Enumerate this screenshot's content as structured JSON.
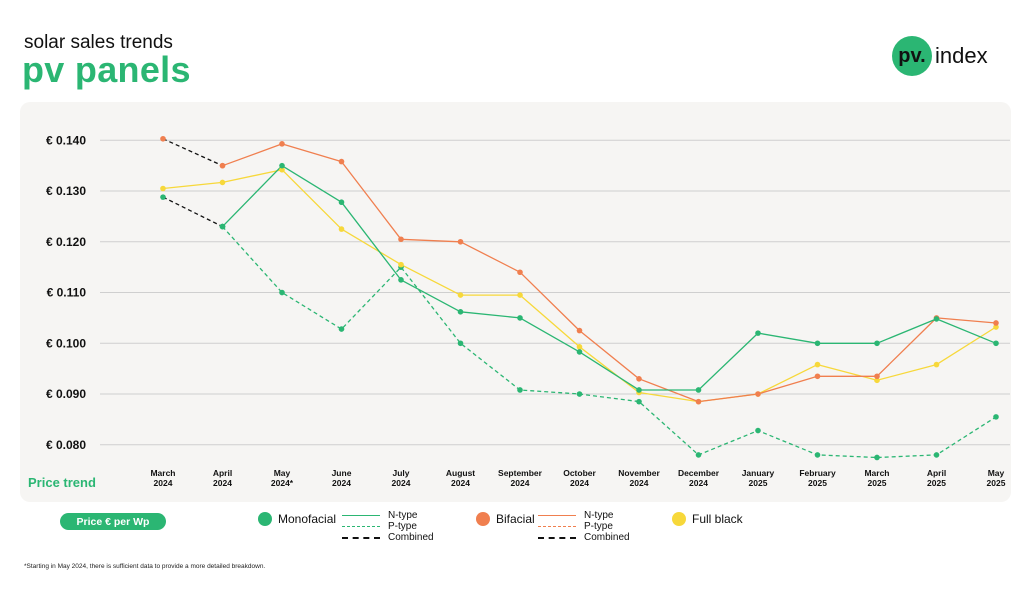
{
  "header": {
    "subtitle": "solar sales trends",
    "title": "pv panels",
    "logo_mark": "pv.",
    "logo_text": "index"
  },
  "colors": {
    "green": "#2bb673",
    "orange": "#f07f4f",
    "yellow": "#f7d83a",
    "combined": "#111111",
    "panel_bg": "#f6f5f3",
    "grid": "#cfcfcf"
  },
  "chart_data": {
    "type": "line",
    "title": "",
    "xlabel": "",
    "ylabel": "",
    "y_tick_labels": [
      "€ 0.140",
      "€ 0.130",
      "€ 0.120",
      "€ 0.110",
      "€ 0.100",
      "€ 0.090",
      "€ 0.080"
    ],
    "y_ticks": [
      0.14,
      0.13,
      0.12,
      0.11,
      0.1,
      0.09,
      0.08
    ],
    "ylim": [
      0.077,
      0.144
    ],
    "categories": [
      [
        "March",
        "2024"
      ],
      [
        "April",
        "2024"
      ],
      [
        "May",
        "2024*"
      ],
      [
        "June",
        "2024"
      ],
      [
        "July",
        "2024"
      ],
      [
        "August",
        "2024"
      ],
      [
        "September",
        "2024"
      ],
      [
        "October",
        "2024"
      ],
      [
        "November",
        "2024"
      ],
      [
        "December",
        "2024"
      ],
      [
        "January",
        "2025"
      ],
      [
        "February",
        "2025"
      ],
      [
        "March",
        "2025"
      ],
      [
        "April",
        "2025"
      ],
      [
        "May",
        "2025"
      ]
    ],
    "grid": true,
    "series": [
      {
        "key": "mono_ntype",
        "group": "Monofacial",
        "subtype": "N-type",
        "color": "#2bb673",
        "dashed": false,
        "values": [
          null,
          0.123,
          0.135,
          0.1278,
          0.1125,
          0.1062,
          0.105,
          0.0983,
          0.0908,
          0.0908,
          0.102,
          0.1,
          0.1,
          0.1048,
          0.1
        ]
      },
      {
        "key": "mono_ptype",
        "group": "Monofacial",
        "subtype": "P-type",
        "color": "#2bb673",
        "dashed": true,
        "values": [
          null,
          0.123,
          0.11,
          0.1028,
          0.115,
          0.1,
          0.0908,
          0.09,
          0.0885,
          0.078,
          0.0828,
          0.078,
          0.0775,
          0.078,
          0.0855
        ]
      },
      {
        "key": "mono_combined",
        "group": "Monofacial",
        "subtype": "Combined",
        "color": "#111111",
        "dashed": true,
        "dot_color": "#2bb673",
        "values": [
          0.1288,
          0.123,
          null,
          null,
          null,
          null,
          null,
          null,
          null,
          null,
          null,
          null,
          null,
          null,
          null
        ]
      },
      {
        "key": "bi_ntype",
        "group": "Bifacial",
        "subtype": "N-type",
        "color": "#f07f4f",
        "dashed": false,
        "values": [
          null,
          0.135,
          0.1393,
          0.1358,
          0.1205,
          0.12,
          0.114,
          0.1025,
          0.093,
          0.0885,
          0.09,
          0.0935,
          0.0935,
          0.105,
          0.104
        ]
      },
      {
        "key": "bi_combined",
        "group": "Bifacial",
        "subtype": "Combined",
        "color": "#111111",
        "dashed": true,
        "dot_color": "#f07f4f",
        "values": [
          0.1403,
          0.135,
          null,
          null,
          null,
          null,
          null,
          null,
          null,
          null,
          null,
          null,
          null,
          null,
          null
        ]
      },
      {
        "key": "full_black",
        "group": "Full black",
        "subtype": "",
        "color": "#f7d83a",
        "dashed": false,
        "values": [
          0.1305,
          0.1317,
          0.1342,
          0.1225,
          0.1155,
          0.1095,
          0.1095,
          0.0993,
          0.0903,
          0.0885,
          0.09,
          0.0958,
          0.0927,
          0.0958,
          0.1032
        ]
      }
    ]
  },
  "labels": {
    "price_trend": "Price trend",
    "unit": "Price € per Wp",
    "footnote": "*Starting in May 2024, there is sufficient data to provide a more detailed breakdown."
  },
  "legend": {
    "monofacial": {
      "label": "Monofacial",
      "types": [
        "N-type",
        "P-type",
        "Combined"
      ]
    },
    "bifacial": {
      "label": "Bifacial",
      "types": [
        "N-type",
        "P-type",
        "Combined"
      ]
    },
    "full_black": {
      "label": "Full black"
    }
  }
}
